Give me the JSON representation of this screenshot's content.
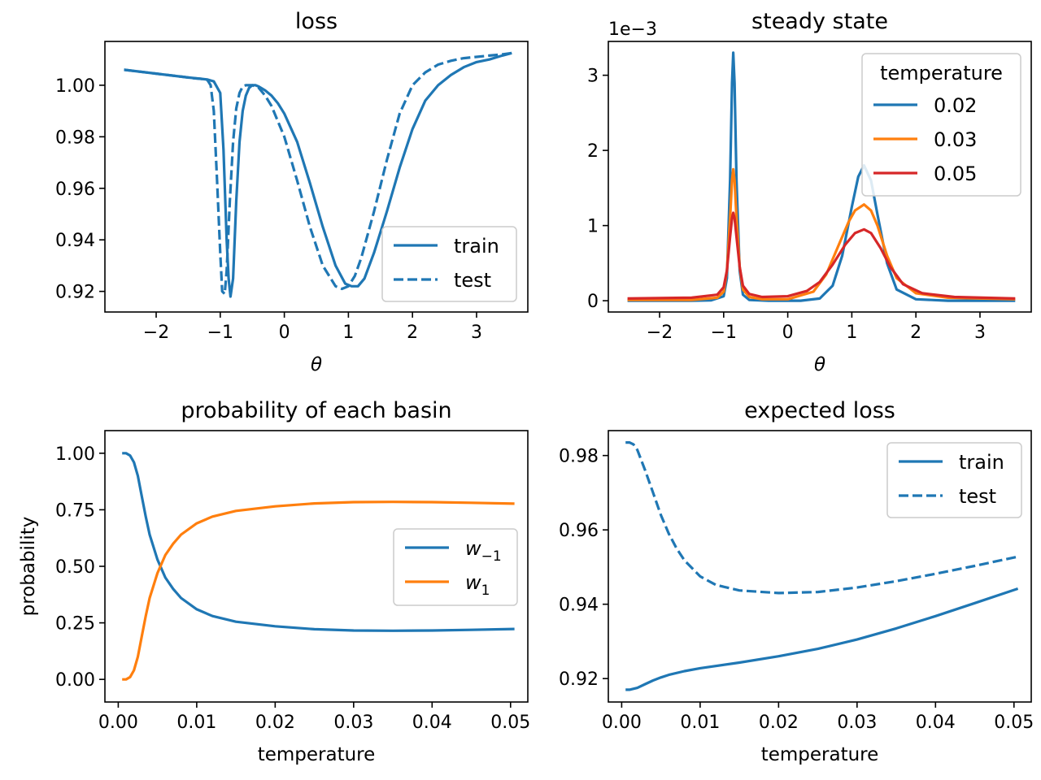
{
  "chart_data": [
    {
      "id": "loss",
      "type": "line",
      "title": "loss",
      "xlabel": "θ",
      "ylabel": "",
      "xlim": [
        -2.8,
        3.8
      ],
      "ylim": [
        0.912,
        1.017
      ],
      "xticks": [
        -2,
        -1,
        0,
        1,
        2,
        3
      ],
      "xtick_labels": [
        "−2",
        "−1",
        "0",
        "1",
        "2",
        "3"
      ],
      "yticks": [
        0.92,
        0.94,
        0.96,
        0.98,
        1.0
      ],
      "ytick_labels": [
        "0.92",
        "0.94",
        "0.96",
        "0.98",
        "1.00"
      ],
      "legend_position": "lower-right",
      "series": [
        {
          "name": "train",
          "color": "#1f77b4",
          "dash": "solid",
          "x": [
            -2.5,
            -2.0,
            -1.5,
            -1.3,
            -1.2,
            -1.1,
            -1.0,
            -0.95,
            -0.9,
            -0.87,
            -0.84,
            -0.8,
            -0.75,
            -0.7,
            -0.65,
            -0.6,
            -0.55,
            -0.5,
            -0.45,
            -0.4,
            -0.3,
            -0.2,
            -0.1,
            0.0,
            0.2,
            0.4,
            0.6,
            0.8,
            0.95,
            1.05,
            1.15,
            1.25,
            1.4,
            1.6,
            1.8,
            2.0,
            2.2,
            2.4,
            2.6,
            2.8,
            3.0,
            3.2,
            3.4,
            3.55
          ],
          "y": [
            1.006,
            1.0045,
            1.003,
            1.0025,
            1.0022,
            1.0015,
            0.997,
            0.975,
            0.94,
            0.925,
            0.918,
            0.925,
            0.955,
            0.978,
            0.99,
            0.996,
            0.999,
            1.0,
            1.0,
            0.9995,
            0.998,
            0.996,
            0.993,
            0.989,
            0.978,
            0.962,
            0.945,
            0.93,
            0.923,
            0.922,
            0.922,
            0.925,
            0.935,
            0.951,
            0.968,
            0.983,
            0.994,
            1.0,
            1.004,
            1.007,
            1.009,
            1.01,
            1.0115,
            1.0125
          ]
        },
        {
          "name": "test",
          "color": "#1f77b4",
          "dash": "dashed",
          "x": [
            -2.5,
            -2.0,
            -1.6,
            -1.4,
            -1.3,
            -1.2,
            -1.15,
            -1.1,
            -1.05,
            -1.0,
            -0.97,
            -0.93,
            -0.9,
            -0.85,
            -0.8,
            -0.75,
            -0.7,
            -0.65,
            -0.6,
            -0.5,
            -0.45,
            -0.4,
            -0.3,
            -0.2,
            0.0,
            0.2,
            0.4,
            0.6,
            0.8,
            0.9,
            1.0,
            1.1,
            1.2,
            1.4,
            1.6,
            1.8,
            2.0,
            2.2,
            2.4,
            2.6,
            2.8,
            3.0,
            3.2,
            3.4,
            3.55
          ],
          "y": [
            1.006,
            1.0045,
            1.0033,
            1.0027,
            1.0025,
            1.002,
            1.0,
            0.99,
            0.963,
            0.935,
            0.92,
            0.919,
            0.928,
            0.955,
            0.978,
            0.991,
            0.997,
            0.9995,
            1.0,
            1.0,
            0.9995,
            0.999,
            0.996,
            0.992,
            0.98,
            0.963,
            0.945,
            0.93,
            0.922,
            0.921,
            0.922,
            0.926,
            0.933,
            0.951,
            0.971,
            0.989,
            1.0,
            1.005,
            1.008,
            1.0095,
            1.0105,
            1.011,
            1.0115,
            1.012,
            1.0125
          ]
        }
      ]
    },
    {
      "id": "steady",
      "type": "line",
      "title": "steady state",
      "xlabel": "θ",
      "ylabel": "",
      "scale_label": "1e−3",
      "xlim": [
        -2.8,
        3.8
      ],
      "ylim": [
        -0.15,
        3.45
      ],
      "xticks": [
        -2,
        -1,
        0,
        1,
        2,
        3
      ],
      "xtick_labels": [
        "−2",
        "−1",
        "0",
        "1",
        "2",
        "3"
      ],
      "yticks": [
        0,
        1,
        2,
        3
      ],
      "ytick_labels": [
        "0",
        "1",
        "2",
        "3"
      ],
      "legend_title": "temperature",
      "legend_position": "upper-right",
      "series": [
        {
          "name": "0.02",
          "color": "#1f77b4",
          "x": [
            -2.5,
            -1.5,
            -1.2,
            -1.0,
            -0.95,
            -0.9,
            -0.87,
            -0.85,
            -0.83,
            -0.8,
            -0.75,
            -0.7,
            -0.6,
            -0.3,
            0.2,
            0.5,
            0.7,
            0.85,
            1.0,
            1.1,
            1.19,
            1.3,
            1.4,
            1.55,
            1.7,
            2.0,
            2.5,
            3.55
          ],
          "y": [
            0.0,
            0.0,
            0.005,
            0.06,
            0.3,
            1.6,
            2.9,
            3.3,
            2.9,
            1.6,
            0.4,
            0.08,
            0.01,
            0.0,
            0.0,
            0.03,
            0.2,
            0.6,
            1.25,
            1.65,
            1.8,
            1.6,
            1.15,
            0.5,
            0.15,
            0.02,
            0.0,
            0.0
          ]
        },
        {
          "name": "0.03",
          "color": "#ff7f0e",
          "x": [
            -2.5,
            -1.5,
            -1.1,
            -1.0,
            -0.95,
            -0.9,
            -0.87,
            -0.85,
            -0.83,
            -0.8,
            -0.75,
            -0.7,
            -0.6,
            -0.4,
            0.0,
            0.4,
            0.6,
            0.8,
            0.95,
            1.05,
            1.19,
            1.3,
            1.4,
            1.55,
            1.7,
            2.0,
            2.5,
            3.55
          ],
          "y": [
            0.01,
            0.01,
            0.04,
            0.12,
            0.4,
            1.1,
            1.6,
            1.75,
            1.6,
            1.1,
            0.45,
            0.15,
            0.05,
            0.02,
            0.02,
            0.12,
            0.35,
            0.75,
            1.05,
            1.2,
            1.28,
            1.2,
            1.0,
            0.6,
            0.3,
            0.1,
            0.04,
            0.02
          ]
        },
        {
          "name": "0.05",
          "color": "#d62728",
          "x": [
            -2.5,
            -1.5,
            -1.1,
            -1.0,
            -0.95,
            -0.9,
            -0.87,
            -0.85,
            -0.83,
            -0.8,
            -0.75,
            -0.7,
            -0.6,
            -0.4,
            0.0,
            0.3,
            0.5,
            0.7,
            0.9,
            1.05,
            1.19,
            1.3,
            1.45,
            1.6,
            1.8,
            2.1,
            2.6,
            3.55
          ],
          "y": [
            0.03,
            0.04,
            0.08,
            0.18,
            0.4,
            0.85,
            1.1,
            1.17,
            1.1,
            0.85,
            0.45,
            0.2,
            0.09,
            0.05,
            0.06,
            0.13,
            0.25,
            0.48,
            0.75,
            0.9,
            0.95,
            0.9,
            0.7,
            0.45,
            0.22,
            0.1,
            0.05,
            0.03
          ]
        }
      ]
    },
    {
      "id": "prob",
      "type": "line",
      "title": "probability of each basin",
      "xlabel": "temperature",
      "ylabel": "probability",
      "xlim": [
        -0.0017,
        0.0522
      ],
      "ylim": [
        -0.1,
        1.1
      ],
      "xticks": [
        0.0,
        0.01,
        0.02,
        0.03,
        0.04,
        0.05
      ],
      "xtick_labels": [
        "0.00",
        "0.01",
        "0.02",
        "0.03",
        "0.04",
        "0.05"
      ],
      "yticks": [
        0.0,
        0.25,
        0.5,
        0.75,
        1.0
      ],
      "ytick_labels": [
        "0.00",
        "0.25",
        "0.50",
        "0.75",
        "1.00"
      ],
      "legend_position": "center-right",
      "series": [
        {
          "name": "w−1",
          "label_base": "w",
          "label_sub": "−1",
          "color": "#1f77b4",
          "x": [
            0.0005,
            0.001,
            0.0015,
            0.002,
            0.0025,
            0.003,
            0.0035,
            0.004,
            0.005,
            0.006,
            0.007,
            0.008,
            0.01,
            0.012,
            0.015,
            0.02,
            0.025,
            0.03,
            0.035,
            0.04,
            0.045,
            0.0505
          ],
          "y": [
            1.0,
            1.0,
            0.99,
            0.96,
            0.9,
            0.81,
            0.72,
            0.64,
            0.53,
            0.45,
            0.4,
            0.36,
            0.31,
            0.28,
            0.255,
            0.235,
            0.222,
            0.216,
            0.215,
            0.216,
            0.219,
            0.223
          ]
        },
        {
          "name": "w1",
          "label_base": "w",
          "label_sub": "1",
          "color": "#ff7f0e",
          "x": [
            0.0005,
            0.001,
            0.0015,
            0.002,
            0.0025,
            0.003,
            0.0035,
            0.004,
            0.005,
            0.006,
            0.007,
            0.008,
            0.01,
            0.012,
            0.015,
            0.02,
            0.025,
            0.03,
            0.035,
            0.04,
            0.045,
            0.0505
          ],
          "y": [
            0.0,
            0.0,
            0.01,
            0.04,
            0.1,
            0.19,
            0.28,
            0.36,
            0.47,
            0.55,
            0.6,
            0.64,
            0.69,
            0.72,
            0.745,
            0.765,
            0.778,
            0.784,
            0.785,
            0.784,
            0.781,
            0.777
          ]
        }
      ]
    },
    {
      "id": "expected",
      "type": "line",
      "title": "expected loss",
      "xlabel": "temperature",
      "ylabel": "",
      "xlim": [
        -0.0017,
        0.0522
      ],
      "ylim": [
        0.9137,
        0.9867
      ],
      "xticks": [
        0.0,
        0.01,
        0.02,
        0.03,
        0.04,
        0.05
      ],
      "xtick_labels": [
        "0.00",
        "0.01",
        "0.02",
        "0.03",
        "0.04",
        "0.05"
      ],
      "yticks": [
        0.92,
        0.94,
        0.96,
        0.98
      ],
      "ytick_labels": [
        "0.92",
        "0.94",
        "0.96",
        "0.98"
      ],
      "legend_position": "upper-right",
      "series": [
        {
          "name": "train",
          "color": "#1f77b4",
          "dash": "solid",
          "x": [
            0.0005,
            0.001,
            0.002,
            0.003,
            0.004,
            0.005,
            0.006,
            0.008,
            0.01,
            0.015,
            0.02,
            0.025,
            0.03,
            0.035,
            0.04,
            0.045,
            0.0505
          ],
          "y": [
            0.917,
            0.917,
            0.9175,
            0.9185,
            0.9195,
            0.9203,
            0.921,
            0.922,
            0.9228,
            0.9243,
            0.926,
            0.928,
            0.9305,
            0.9335,
            0.9368,
            0.9403,
            0.9442
          ]
        },
        {
          "name": "test",
          "color": "#1f77b4",
          "dash": "dashed",
          "x": [
            0.0005,
            0.001,
            0.0015,
            0.002,
            0.003,
            0.004,
            0.005,
            0.006,
            0.007,
            0.008,
            0.01,
            0.012,
            0.015,
            0.02,
            0.025,
            0.03,
            0.035,
            0.04,
            0.045,
            0.0505
          ],
          "y": [
            0.9835,
            0.9835,
            0.983,
            0.9815,
            0.976,
            0.97,
            0.964,
            0.959,
            0.955,
            0.9518,
            0.9475,
            0.9452,
            0.9437,
            0.943,
            0.9433,
            0.9445,
            0.9462,
            0.9482,
            0.9503,
            0.9528
          ]
        }
      ]
    }
  ]
}
